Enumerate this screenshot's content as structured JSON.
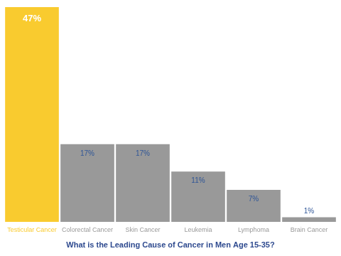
{
  "chart_data": {
    "type": "bar",
    "title": "What is the Leading Cause of Cancer in Men Age 15-35?",
    "categories": [
      "Testicular Cancer",
      "Colorectal Cancer",
      "Skin Cancer",
      "Leukemia",
      "Lymphoma",
      "Brain Cancer"
    ],
    "values": [
      47,
      17,
      17,
      11,
      7,
      1
    ],
    "value_labels": [
      "47%",
      "17%",
      "17%",
      "11%",
      "7%",
      "1%"
    ],
    "colors": [
      "#f9cb2f",
      "#999999",
      "#999999",
      "#999999",
      "#999999",
      "#999999"
    ],
    "ylim": [
      0,
      47
    ],
    "grid": false,
    "data_labels": true,
    "tick_labels": "x"
  }
}
